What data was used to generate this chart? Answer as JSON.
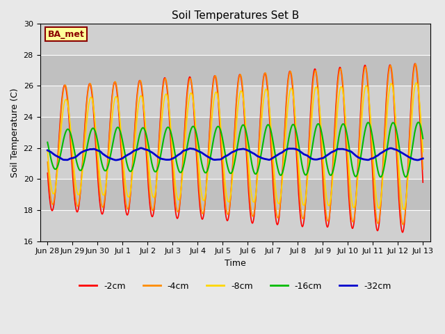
{
  "title": "Soil Temperatures Set B",
  "xlabel": "Time",
  "ylabel": "Soil Temperature (C)",
  "ylim": [
    16,
    30
  ],
  "xlim_days": [
    -0.3,
    15.3
  ],
  "tick_labels": [
    "Jun 28",
    "Jun 29",
    "Jun 30",
    "Jul 1",
    "Jul 2",
    "Jul 3",
    "Jul 4",
    "Jul 5",
    "Jul 6",
    "Jul 7",
    "Jul 8",
    "Jul 9",
    "Jul 10",
    "Jul 11",
    "Jul 12",
    "Jul 13"
  ],
  "tick_positions": [
    0,
    1,
    2,
    3,
    4,
    5,
    6,
    7,
    8,
    9,
    10,
    11,
    12,
    13,
    14,
    15
  ],
  "colors": {
    "-2cm": "#FF0000",
    "-4cm": "#FF8C00",
    "-8cm": "#FFD700",
    "-16cm": "#00BB00",
    "-32cm": "#0000CC"
  },
  "linewidths": {
    "-2cm": 1.2,
    "-4cm": 1.2,
    "-8cm": 1.2,
    "-16cm": 1.5,
    "-32cm": 2.0
  },
  "annotation_text": "BA_met",
  "bg_color": "#E8E8E8",
  "plot_bg_color": "#D8D8D8",
  "grid_color": "#FFFFFF",
  "title_fontsize": 11,
  "axis_fontsize": 9,
  "tick_fontsize": 8
}
